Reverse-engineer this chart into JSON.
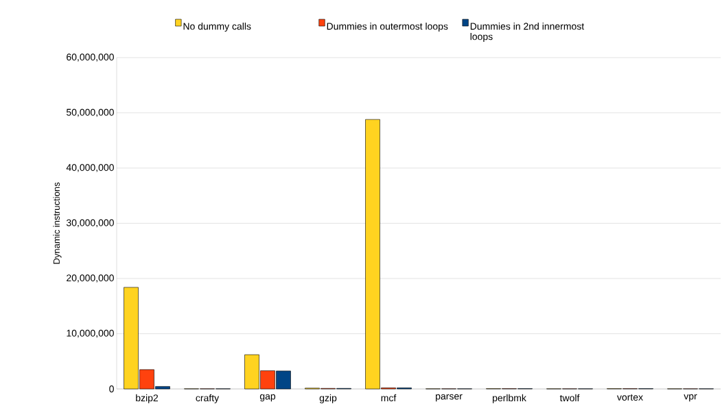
{
  "chart_data": {
    "type": "bar",
    "ylabel": "Dynamic instructions",
    "categories": [
      "bzip2",
      "crafty",
      "gap",
      "gzip",
      "mcf",
      "parser",
      "perlbmk",
      "twolf",
      "vortex",
      "vpr"
    ],
    "series": [
      {
        "name": "No dummy calls",
        "color": "#ffd320",
        "values": [
          18400000,
          30000,
          6200000,
          150000,
          48800000,
          30000,
          60000,
          30000,
          60000,
          30000
        ]
      },
      {
        "name": "Dummies in outermost loops",
        "color": "#ff420e",
        "values": [
          3500000,
          30000,
          3300000,
          100000,
          200000,
          30000,
          60000,
          30000,
          60000,
          30000
        ]
      },
      {
        "name": "Dummies in 2nd innermost loops",
        "color": "#004586",
        "values": [
          450000,
          30000,
          3250000,
          100000,
          200000,
          30000,
          60000,
          30000,
          60000,
          30000
        ]
      }
    ],
    "ylim": [
      0,
      60000000
    ],
    "yticks": [
      {
        "value": 0,
        "label": "0"
      },
      {
        "value": 10000000,
        "label": "10,000,000"
      },
      {
        "value": 20000000,
        "label": "20,000,000"
      },
      {
        "value": 30000000,
        "label": "30,000,000"
      },
      {
        "value": 40000000,
        "label": "40,000,000"
      },
      {
        "value": 50000000,
        "label": "50,000,000"
      },
      {
        "value": 60000000,
        "label": "60,000,000"
      }
    ],
    "grid": "y",
    "legend": "top"
  }
}
